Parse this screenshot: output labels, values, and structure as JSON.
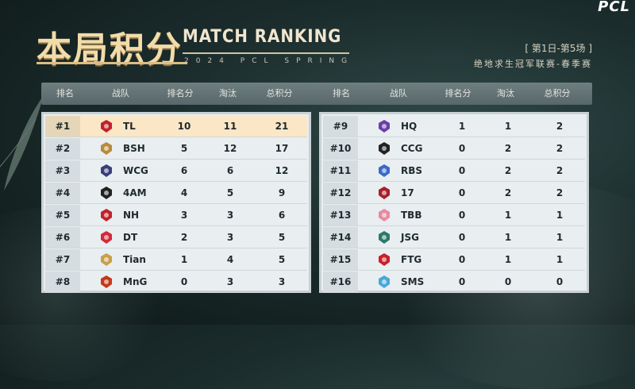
{
  "brand": {
    "logo": "PCL"
  },
  "header": {
    "title_cn": "本局积分",
    "title_en": "MATCH RANKING",
    "subtitle": "2024 PCL SPRING",
    "round": "[ 第1日-第5场 ]",
    "event": "绝地求生冠军联赛-春季赛"
  },
  "columns": {
    "rank": "排名",
    "team": "战队",
    "place_pts": "排名分",
    "elims": "淘汰",
    "total": "总积分"
  },
  "colors": {
    "highlight": "#fbe6c6",
    "title_gold": "#f2dcaa"
  },
  "left_rows": [
    {
      "rank": "#1",
      "tag": "TL",
      "place": "10",
      "elims": "11",
      "total": "21",
      "icon": "tl-logo-icon",
      "color": "#c0222c"
    },
    {
      "rank": "#2",
      "tag": "BSH",
      "place": "5",
      "elims": "12",
      "total": "17",
      "icon": "bsh-logo-icon",
      "color": "#b88a3c"
    },
    {
      "rank": "#3",
      "tag": "WCG",
      "place": "6",
      "elims": "6",
      "total": "12",
      "icon": "wcg-logo-icon",
      "color": "#3a3f7a"
    },
    {
      "rank": "#4",
      "tag": "4AM",
      "place": "4",
      "elims": "5",
      "total": "9",
      "icon": "4am-logo-icon",
      "color": "#222222"
    },
    {
      "rank": "#5",
      "tag": "NH",
      "place": "3",
      "elims": "3",
      "total": "6",
      "icon": "nh-logo-icon",
      "color": "#c0222c"
    },
    {
      "rank": "#6",
      "tag": "DT",
      "place": "2",
      "elims": "3",
      "total": "5",
      "icon": "dt-logo-icon",
      "color": "#d42a3a"
    },
    {
      "rank": "#7",
      "tag": "Tian",
      "place": "1",
      "elims": "4",
      "total": "5",
      "icon": "tian-logo-icon",
      "color": "#c8a04a"
    },
    {
      "rank": "#8",
      "tag": "MnG",
      "place": "0",
      "elims": "3",
      "total": "3",
      "icon": "mng-logo-icon",
      "color": "#c23a1a"
    }
  ],
  "right_rows": [
    {
      "rank": "#9",
      "tag": "HQ",
      "place": "1",
      "elims": "1",
      "total": "2",
      "icon": "hq-logo-icon",
      "color": "#6a3fa8"
    },
    {
      "rank": "#10",
      "tag": "CCG",
      "place": "0",
      "elims": "2",
      "total": "2",
      "icon": "ccg-logo-icon",
      "color": "#222222"
    },
    {
      "rank": "#11",
      "tag": "RBS",
      "place": "0",
      "elims": "2",
      "total": "2",
      "icon": "rbs-logo-icon",
      "color": "#3a6ac8"
    },
    {
      "rank": "#12",
      "tag": "17",
      "place": "0",
      "elims": "2",
      "total": "2",
      "icon": "17-logo-icon",
      "color": "#a8202a"
    },
    {
      "rank": "#13",
      "tag": "TBB",
      "place": "0",
      "elims": "1",
      "total": "1",
      "icon": "tbb-logo-icon",
      "color": "#e88aa0"
    },
    {
      "rank": "#14",
      "tag": "JSG",
      "place": "0",
      "elims": "1",
      "total": "1",
      "icon": "jsg-logo-icon",
      "color": "#2a7a6a"
    },
    {
      "rank": "#15",
      "tag": "FTG",
      "place": "0",
      "elims": "1",
      "total": "1",
      "icon": "ftg-logo-icon",
      "color": "#c8202a"
    },
    {
      "rank": "#16",
      "tag": "SMS",
      "place": "0",
      "elims": "0",
      "total": "0",
      "icon": "sms-logo-icon",
      "color": "#4aa8d8"
    }
  ]
}
